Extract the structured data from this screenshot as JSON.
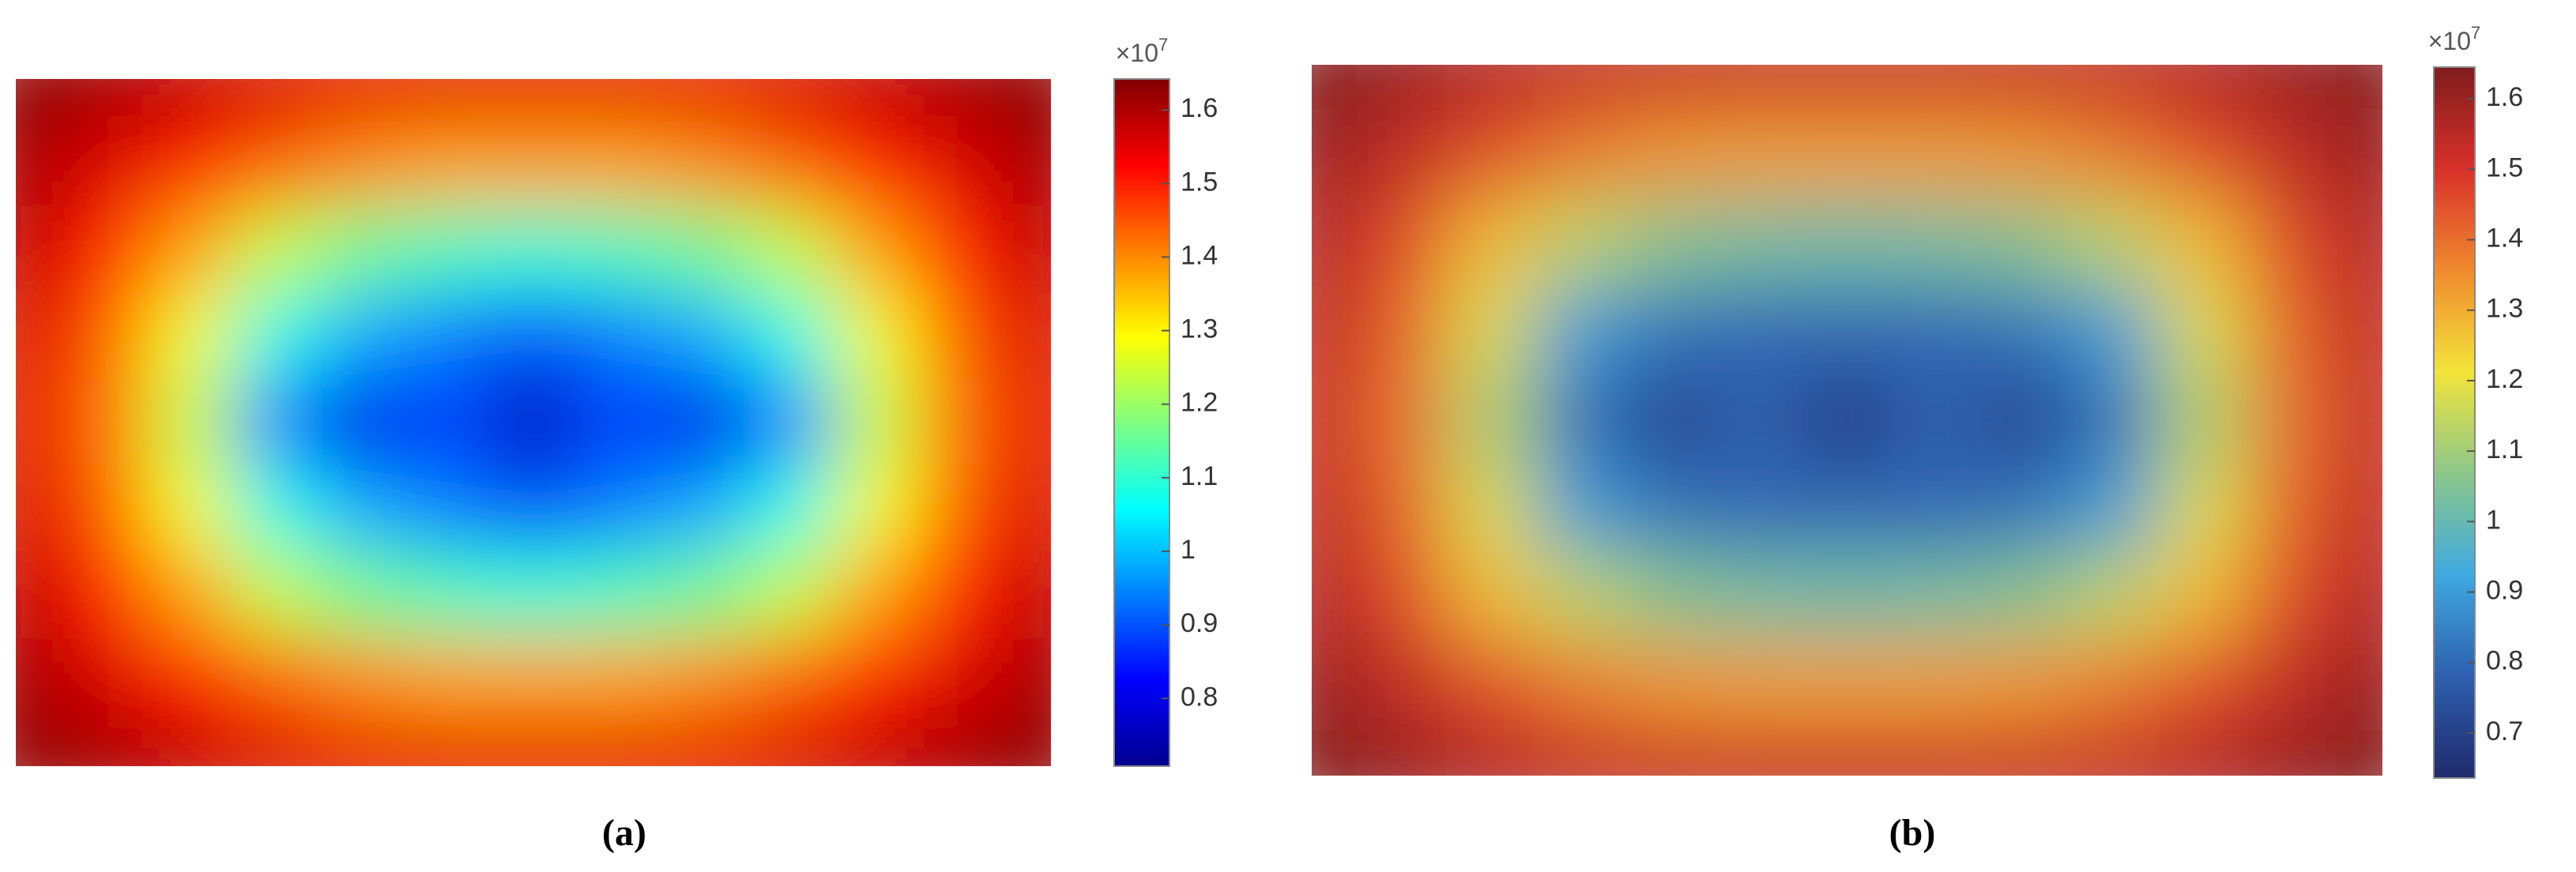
{
  "chart_data": [
    {
      "type": "heatmap",
      "caption": "(a)",
      "multiplier": "×10",
      "multiplier_exponent": "7",
      "clim": [
        0.708,
        1.642
      ],
      "cticks": [
        0.8,
        0.9,
        1,
        1.1,
        1.2,
        1.3,
        1.4,
        1.5,
        1.6
      ],
      "colormap": [
        "#00008f",
        "#0000ff",
        "#0080ff",
        "#00ffff",
        "#80ff80",
        "#ffff00",
        "#ff8000",
        "#ff0000",
        "#800000"
      ],
      "z": [
        [
          1.63,
          1.61,
          1.58,
          1.56,
          1.55,
          1.55,
          1.55,
          1.55,
          1.55,
          1.56,
          1.58,
          1.61,
          1.63
        ],
        [
          1.61,
          1.56,
          1.5,
          1.44,
          1.4,
          1.38,
          1.38,
          1.38,
          1.4,
          1.44,
          1.5,
          1.56,
          1.61
        ],
        [
          1.58,
          1.5,
          1.38,
          1.24,
          1.16,
          1.12,
          1.1,
          1.12,
          1.16,
          1.24,
          1.38,
          1.5,
          1.58
        ],
        [
          1.56,
          1.45,
          1.28,
          1.08,
          0.98,
          0.94,
          0.9,
          0.94,
          0.98,
          1.08,
          1.28,
          1.45,
          1.56
        ],
        [
          1.55,
          1.43,
          1.24,
          0.95,
          0.8,
          0.88,
          0.75,
          0.88,
          0.8,
          0.95,
          1.24,
          1.43,
          1.55
        ],
        [
          1.56,
          1.45,
          1.28,
          1.08,
          0.98,
          0.94,
          0.9,
          0.94,
          0.98,
          1.08,
          1.28,
          1.45,
          1.56
        ],
        [
          1.58,
          1.5,
          1.38,
          1.24,
          1.16,
          1.12,
          1.1,
          1.12,
          1.16,
          1.24,
          1.38,
          1.5,
          1.58
        ],
        [
          1.61,
          1.56,
          1.5,
          1.44,
          1.4,
          1.38,
          1.38,
          1.38,
          1.4,
          1.44,
          1.5,
          1.56,
          1.61
        ],
        [
          1.63,
          1.61,
          1.58,
          1.56,
          1.55,
          1.55,
          1.55,
          1.55,
          1.55,
          1.56,
          1.58,
          1.61,
          1.63
        ]
      ]
    },
    {
      "type": "heatmap",
      "caption": "(b)",
      "multiplier": "×10",
      "multiplier_exponent": "7",
      "clim": [
        0.636,
        1.645
      ],
      "cticks": [
        0.7,
        0.8,
        0.9,
        1,
        1.1,
        1.2,
        1.3,
        1.4,
        1.5,
        1.6
      ],
      "colormap": [
        "#1f2a6b",
        "#2e5fae",
        "#3fa9e0",
        "#8cc78a",
        "#f2e43a",
        "#f08a2e",
        "#d7302a",
        "#7f1d1d"
      ],
      "z": [
        [
          1.64,
          1.6,
          1.56,
          1.54,
          1.53,
          1.53,
          1.53,
          1.53,
          1.53,
          1.54,
          1.56,
          1.6,
          1.64
        ],
        [
          1.6,
          1.54,
          1.45,
          1.38,
          1.34,
          1.33,
          1.33,
          1.33,
          1.34,
          1.38,
          1.45,
          1.54,
          1.6
        ],
        [
          1.56,
          1.46,
          1.28,
          1.14,
          1.06,
          1.03,
          1.02,
          1.03,
          1.06,
          1.14,
          1.28,
          1.46,
          1.56
        ],
        [
          1.54,
          1.42,
          1.18,
          0.9,
          0.82,
          0.8,
          0.8,
          0.8,
          0.82,
          0.9,
          1.18,
          1.42,
          1.54
        ],
        [
          1.53,
          1.4,
          1.12,
          0.82,
          0.7,
          0.78,
          0.68,
          0.78,
          0.7,
          0.82,
          1.12,
          1.4,
          1.53
        ],
        [
          1.54,
          1.42,
          1.18,
          0.9,
          0.82,
          0.8,
          0.8,
          0.8,
          0.82,
          0.9,
          1.18,
          1.42,
          1.54
        ],
        [
          1.56,
          1.46,
          1.28,
          1.14,
          1.06,
          1.03,
          1.02,
          1.03,
          1.06,
          1.14,
          1.28,
          1.46,
          1.56
        ],
        [
          1.6,
          1.54,
          1.45,
          1.38,
          1.34,
          1.33,
          1.33,
          1.33,
          1.34,
          1.38,
          1.45,
          1.54,
          1.6
        ],
        [
          1.64,
          1.6,
          1.56,
          1.54,
          1.53,
          1.53,
          1.53,
          1.53,
          1.53,
          1.54,
          1.56,
          1.6,
          1.64
        ]
      ]
    }
  ]
}
